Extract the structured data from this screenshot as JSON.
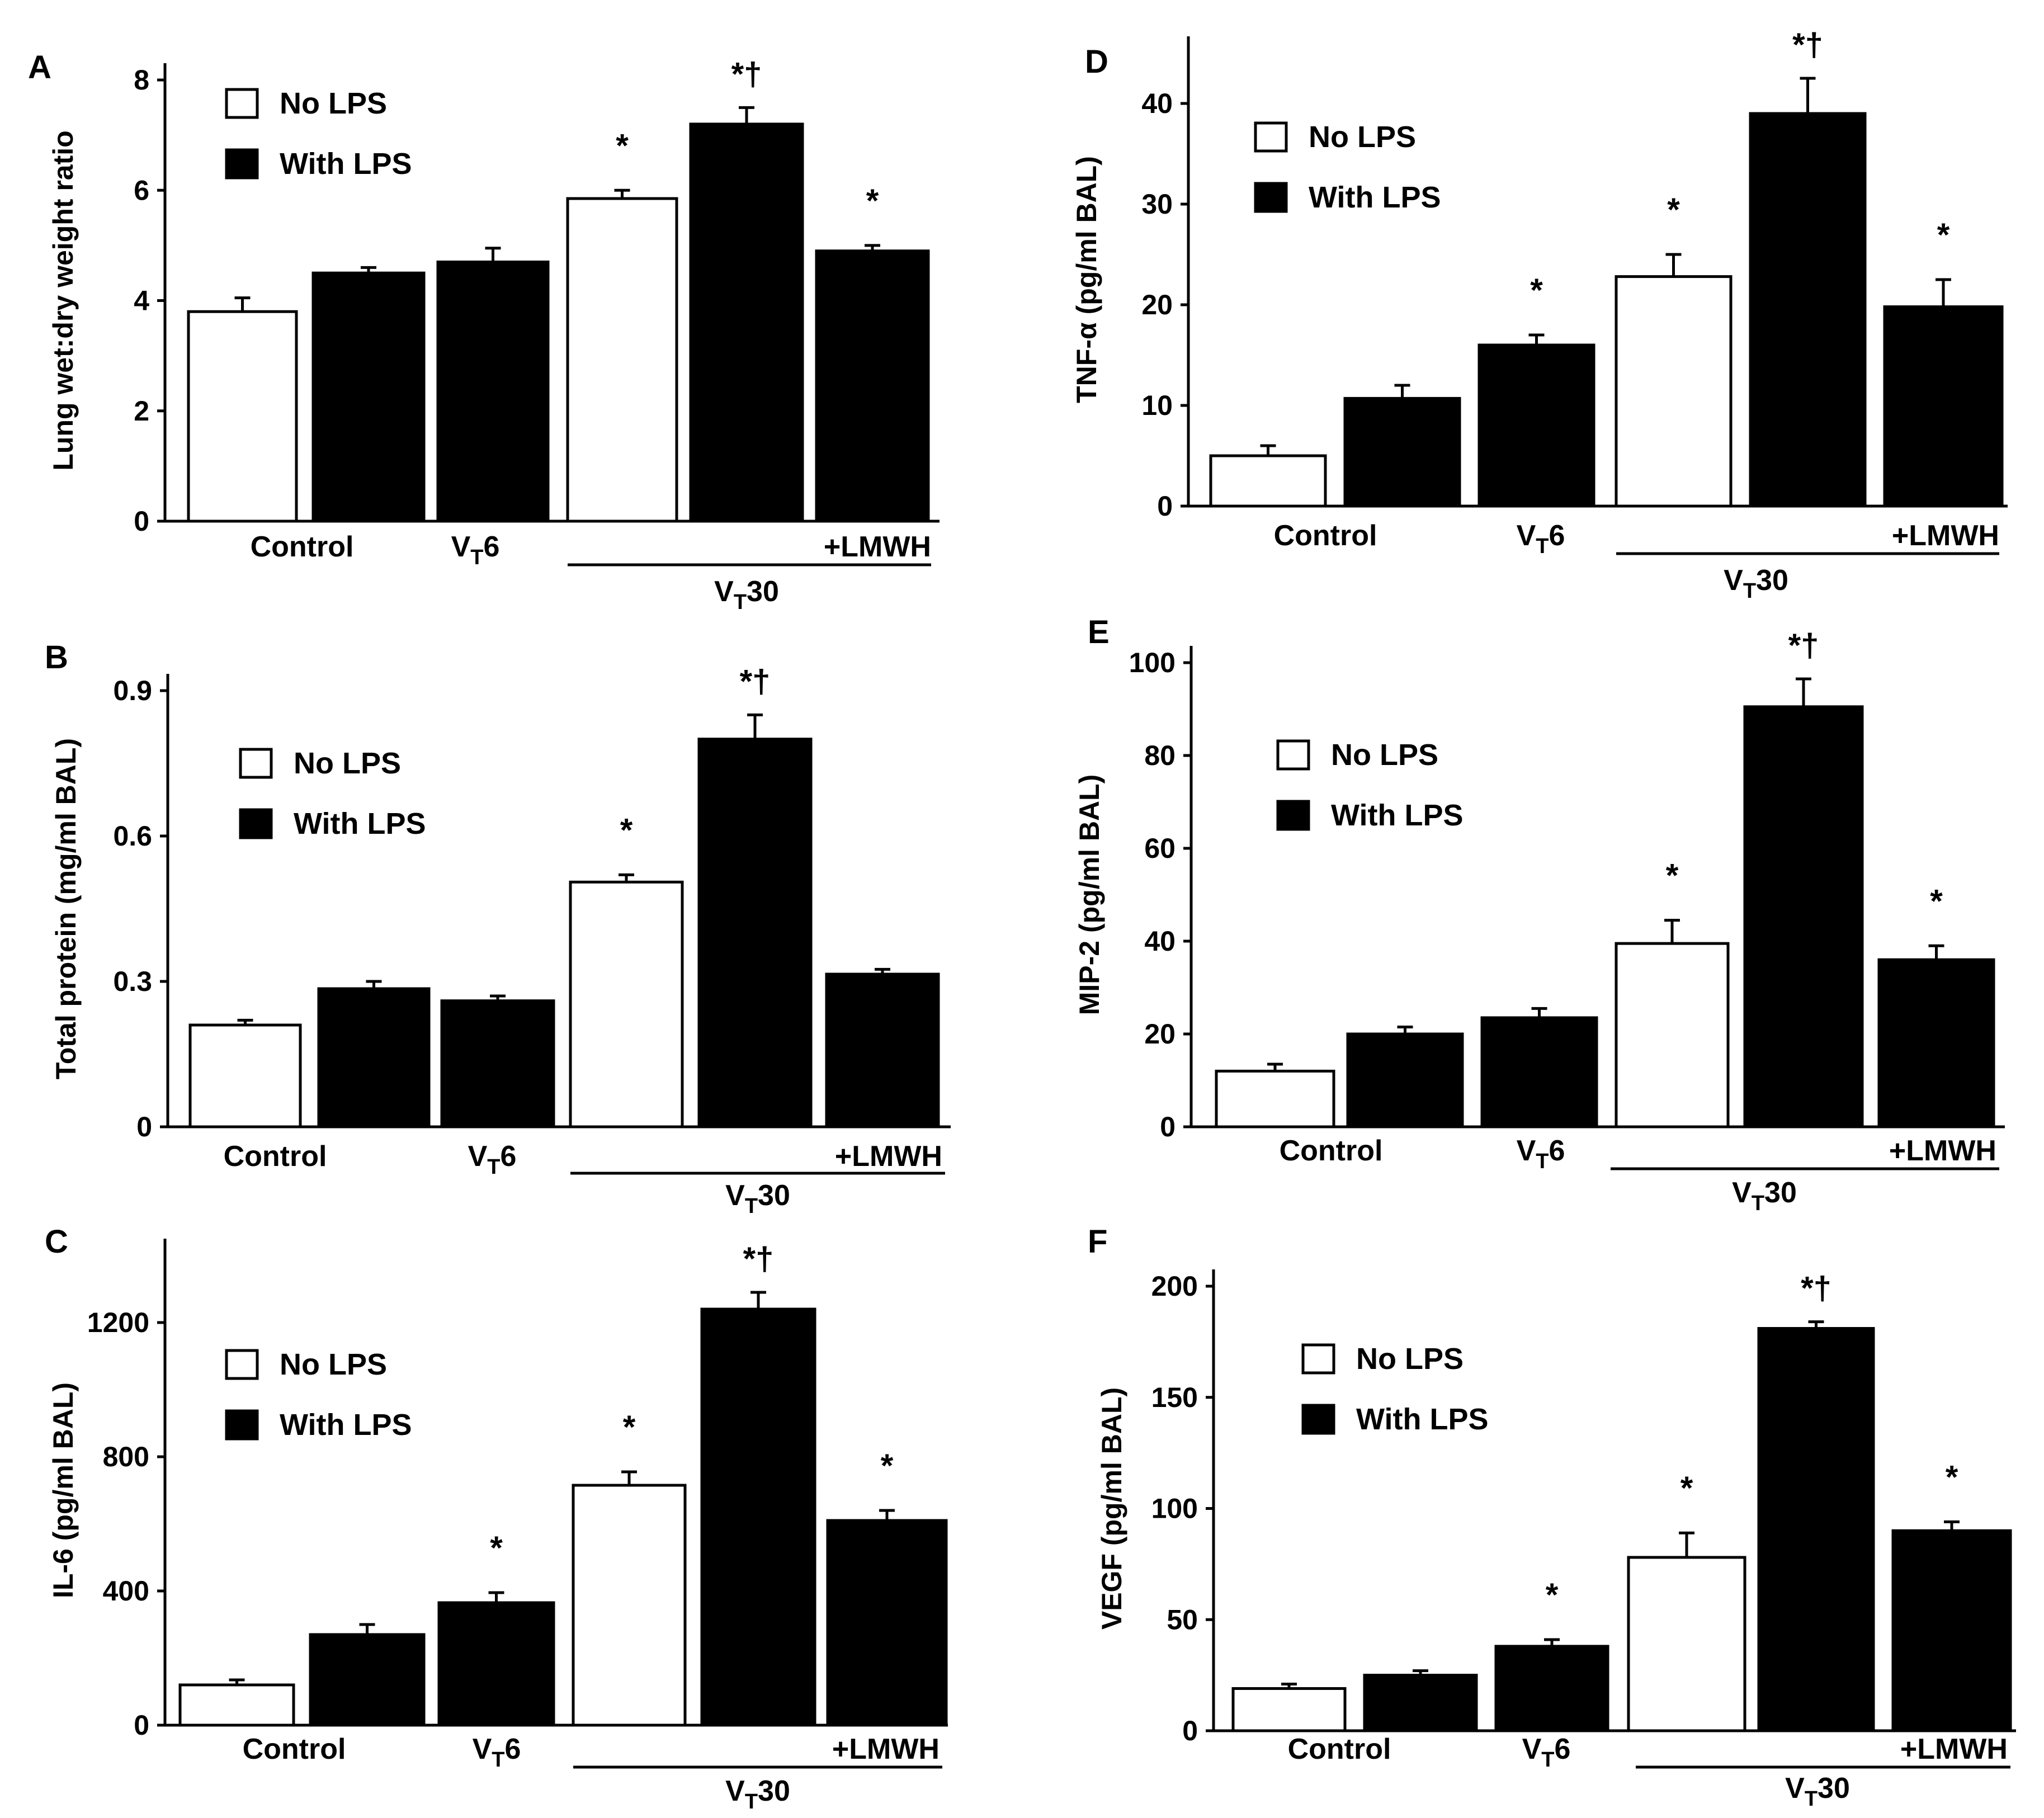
{
  "colors": {
    "no_lps": "#ffffff",
    "with_lps": "#000000",
    "axis": "#000000"
  },
  "chart_data": [
    {
      "panel": "A",
      "type": "bar",
      "ylabel": "Lung wet:dry weight ratio",
      "yticks": [
        "0",
        "2",
        "4",
        "6",
        "8"
      ],
      "ylim": [
        0,
        8
      ],
      "legend": [
        "No LPS",
        "With LPS"
      ],
      "categories": [
        "Control",
        "VT6",
        "VT30",
        "VT30 +LMWH"
      ],
      "bars": [
        {
          "group": "Control",
          "series": "No LPS",
          "value": 3.8,
          "error": 0.25,
          "mark": ""
        },
        {
          "group": "Control",
          "series": "With LPS",
          "value": 4.5,
          "error": 0.1,
          "mark": ""
        },
        {
          "group": "VT6",
          "series": "With LPS",
          "value": 4.7,
          "error": 0.25,
          "mark": ""
        },
        {
          "group": "VT30",
          "series": "No LPS",
          "value": 5.85,
          "error": 0.15,
          "mark": "*"
        },
        {
          "group": "VT30",
          "series": "With LPS",
          "value": 7.2,
          "error": 0.3,
          "mark": "*†"
        },
        {
          "group": "VT30 +LMWH",
          "series": "With LPS",
          "value": 4.9,
          "error": 0.1,
          "mark": "*"
        }
      ],
      "xlabels": {
        "control": "Control",
        "vt6_main": "V",
        "vt6_sub": "T",
        "vt6_num": "6",
        "lmwh": "+LMWH",
        "vt30_main": "V",
        "vt30_sub": "T",
        "vt30_num": "30"
      }
    },
    {
      "panel": "B",
      "type": "bar",
      "ylabel": "Total protein (mg/ml BAL)",
      "yticks": [
        "0",
        "0.3",
        "0.6",
        "0.9"
      ],
      "ylim": [
        0,
        0.9
      ],
      "legend": [
        "No LPS",
        "With LPS"
      ],
      "categories": [
        "Control",
        "VT6",
        "VT30",
        "VT30 +LMWH"
      ],
      "bars": [
        {
          "group": "Control",
          "series": "No LPS",
          "value": 0.21,
          "error": 0.01,
          "mark": ""
        },
        {
          "group": "Control",
          "series": "With LPS",
          "value": 0.285,
          "error": 0.015,
          "mark": ""
        },
        {
          "group": "VT6",
          "series": "With LPS",
          "value": 0.26,
          "error": 0.01,
          "mark": ""
        },
        {
          "group": "VT30",
          "series": "No LPS",
          "value": 0.505,
          "error": 0.015,
          "mark": "*"
        },
        {
          "group": "VT30",
          "series": "With LPS",
          "value": 0.8,
          "error": 0.05,
          "mark": "*†"
        },
        {
          "group": "VT30 +LMWH",
          "series": "With LPS",
          "value": 0.315,
          "error": 0.01,
          "mark": ""
        }
      ],
      "xlabels": {
        "control": "Control",
        "vt6_main": "V",
        "vt6_sub": "T",
        "vt6_num": "6",
        "lmwh": "+LMWH",
        "vt30_main": "V",
        "vt30_sub": "T",
        "vt30_num": "30"
      }
    },
    {
      "panel": "C",
      "type": "bar",
      "ylabel": "IL-6 (pg/ml BAL)",
      "yticks": [
        "0",
        "400",
        "800",
        "1200"
      ],
      "ylim": [
        0,
        1400
      ],
      "legend": [
        "No LPS",
        "With LPS"
      ],
      "categories": [
        "Control",
        "VT6",
        "VT30",
        "VT30 +LMWH"
      ],
      "bars": [
        {
          "group": "Control",
          "series": "No LPS",
          "value": 120,
          "error": 15,
          "mark": ""
        },
        {
          "group": "Control",
          "series": "With LPS",
          "value": 270,
          "error": 30,
          "mark": ""
        },
        {
          "group": "VT6",
          "series": "With LPS",
          "value": 365,
          "error": 30,
          "mark": "*"
        },
        {
          "group": "VT30",
          "series": "No LPS",
          "value": 715,
          "error": 40,
          "mark": "*"
        },
        {
          "group": "VT30",
          "series": "With LPS",
          "value": 1240,
          "error": 50,
          "mark": "*†"
        },
        {
          "group": "VT30 +LMWH",
          "series": "With LPS",
          "value": 610,
          "error": 30,
          "mark": "*"
        }
      ],
      "xlabels": {
        "control": "Control",
        "vt6_main": "V",
        "vt6_sub": "T",
        "vt6_num": "6",
        "lmwh": "+LMWH",
        "vt30_main": "V",
        "vt30_sub": "T",
        "vt30_num": "30"
      }
    },
    {
      "panel": "D",
      "type": "bar",
      "ylabel": "TNF-α (pg/ml BAL)",
      "yticks": [
        "0",
        "10",
        "20",
        "30",
        "40"
      ],
      "ylim": [
        0,
        45
      ],
      "legend": [
        "No LPS",
        "With LPS"
      ],
      "categories": [
        "Control",
        "VT6",
        "VT30",
        "VT30 +LMWH"
      ],
      "bars": [
        {
          "group": "Control",
          "series": "No LPS",
          "value": 5,
          "error": 1,
          "mark": ""
        },
        {
          "group": "Control",
          "series": "With LPS",
          "value": 10.7,
          "error": 1.3,
          "mark": ""
        },
        {
          "group": "VT6",
          "series": "With LPS",
          "value": 16,
          "error": 1,
          "mark": "*"
        },
        {
          "group": "VT30",
          "series": "No LPS",
          "value": 22.8,
          "error": 2.2,
          "mark": "*"
        },
        {
          "group": "VT30",
          "series": "With LPS",
          "value": 39,
          "error": 3.5,
          "mark": "*†"
        },
        {
          "group": "VT30 +LMWH",
          "series": "With LPS",
          "value": 19.8,
          "error": 2.7,
          "mark": "*"
        }
      ],
      "xlabels": {
        "control": "Control",
        "vt6_main": "V",
        "vt6_sub": "T",
        "vt6_num": "6",
        "lmwh": "+LMWH",
        "vt30_main": "V",
        "vt30_sub": "T",
        "vt30_num": "30"
      }
    },
    {
      "panel": "E",
      "type": "bar",
      "ylabel": "MIP-2 (pg/ml BAL)",
      "yticks": [
        "0",
        "20",
        "40",
        "60",
        "80",
        "100"
      ],
      "ylim": [
        0,
        100
      ],
      "legend": [
        "No LPS",
        "With LPS"
      ],
      "categories": [
        "Control",
        "VT6",
        "VT30",
        "VT30 +LMWH"
      ],
      "bars": [
        {
          "group": "Control",
          "series": "No LPS",
          "value": 12,
          "error": 1.5,
          "mark": ""
        },
        {
          "group": "Control",
          "series": "With LPS",
          "value": 20,
          "error": 1.5,
          "mark": ""
        },
        {
          "group": "VT6",
          "series": "With LPS",
          "value": 23.5,
          "error": 2,
          "mark": ""
        },
        {
          "group": "VT30",
          "series": "No LPS",
          "value": 39.5,
          "error": 5,
          "mark": "*"
        },
        {
          "group": "VT30",
          "series": "With LPS",
          "value": 90.5,
          "error": 6,
          "mark": "*†"
        },
        {
          "group": "VT30 +LMWH",
          "series": "With LPS",
          "value": 36,
          "error": 3,
          "mark": "*"
        }
      ],
      "xlabels": {
        "control": "Control",
        "vt6_main": "V",
        "vt6_sub": "T",
        "vt6_num": "6",
        "lmwh": "+LMWH",
        "vt30_main": "V",
        "vt30_sub": "T",
        "vt30_num": "30"
      }
    },
    {
      "panel": "F",
      "type": "bar",
      "ylabel": "VEGF (pg/ml BAL)",
      "yticks": [
        "0",
        "50",
        "100",
        "150",
        "200"
      ],
      "ylim": [
        0,
        200
      ],
      "legend": [
        "No LPS",
        "With LPS"
      ],
      "categories": [
        "Control",
        "VT6",
        "VT30",
        "VT30 +LMWH"
      ],
      "bars": [
        {
          "group": "Control",
          "series": "No LPS",
          "value": 19,
          "error": 2,
          "mark": ""
        },
        {
          "group": "Control",
          "series": "With LPS",
          "value": 25,
          "error": 2,
          "mark": ""
        },
        {
          "group": "VT6",
          "series": "With LPS",
          "value": 38,
          "error": 3,
          "mark": "*"
        },
        {
          "group": "VT30",
          "series": "No LPS",
          "value": 78,
          "error": 11,
          "mark": "*"
        },
        {
          "group": "VT30",
          "series": "With LPS",
          "value": 181,
          "error": 3,
          "mark": "*†"
        },
        {
          "group": "VT30 +LMWH",
          "series": "With LPS",
          "value": 90,
          "error": 4,
          "mark": "*"
        }
      ],
      "xlabels": {
        "control": "Control",
        "vt6_main": "V",
        "vt6_sub": "T",
        "vt6_num": "6",
        "lmwh": "+LMWH",
        "vt30_main": "V",
        "vt30_sub": "T",
        "vt30_num": "30"
      }
    }
  ]
}
